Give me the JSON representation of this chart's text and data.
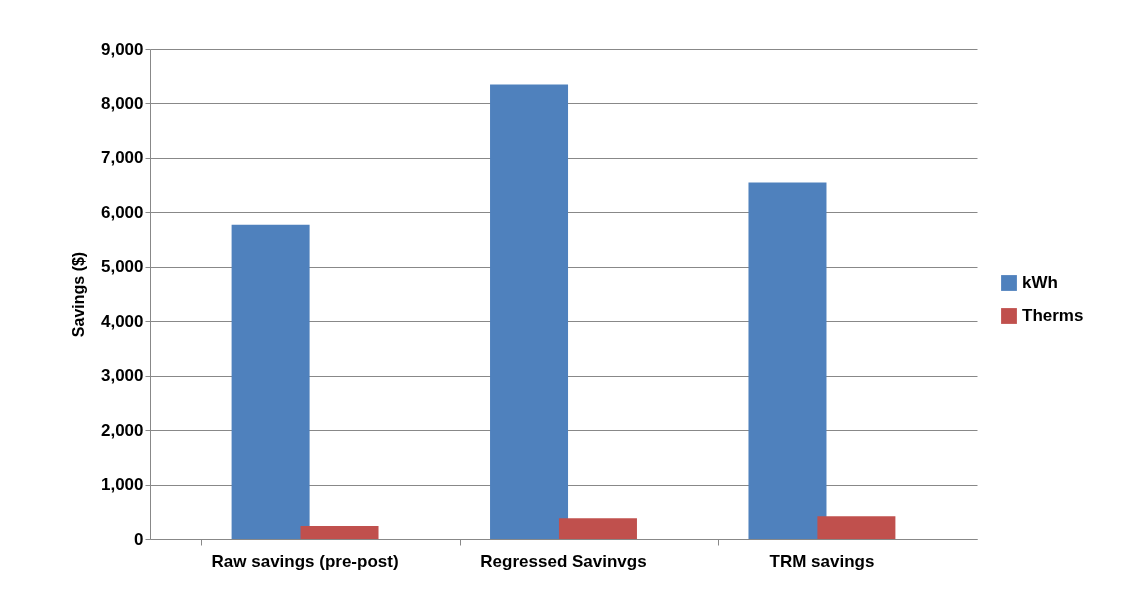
{
  "chart_data": {
    "type": "bar",
    "ylabel": "Savings ($)",
    "categories": [
      "Raw savings (pre-post)",
      "Regressed Savinvgs",
      "TRM savings"
    ],
    "series": [
      {
        "name": "kWh",
        "color": "#4f81bd",
        "values": [
          5770,
          8350,
          6550
        ]
      },
      {
        "name": "Therms",
        "color": "#c0504d",
        "values": [
          240,
          380,
          420
        ]
      }
    ],
    "ylim": [
      0,
      9000
    ],
    "yticks": [
      0,
      {
        "value": 1000,
        "label": "1,000"
      },
      {
        "value": 2000,
        "label": "2,000"
      },
      {
        "value": 3000,
        "label": "3,000"
      },
      {
        "value": 4000,
        "label": "4,000"
      },
      {
        "value": 5000,
        "label": "5,000"
      },
      {
        "value": 6000,
        "label": "6,000"
      },
      {
        "value": 7000,
        "label": "7,000"
      },
      {
        "value": 8000,
        "label": "8,000"
      },
      {
        "value": 9000,
        "label": "9,000"
      }
    ],
    "grid": "y",
    "legend": "right"
  }
}
